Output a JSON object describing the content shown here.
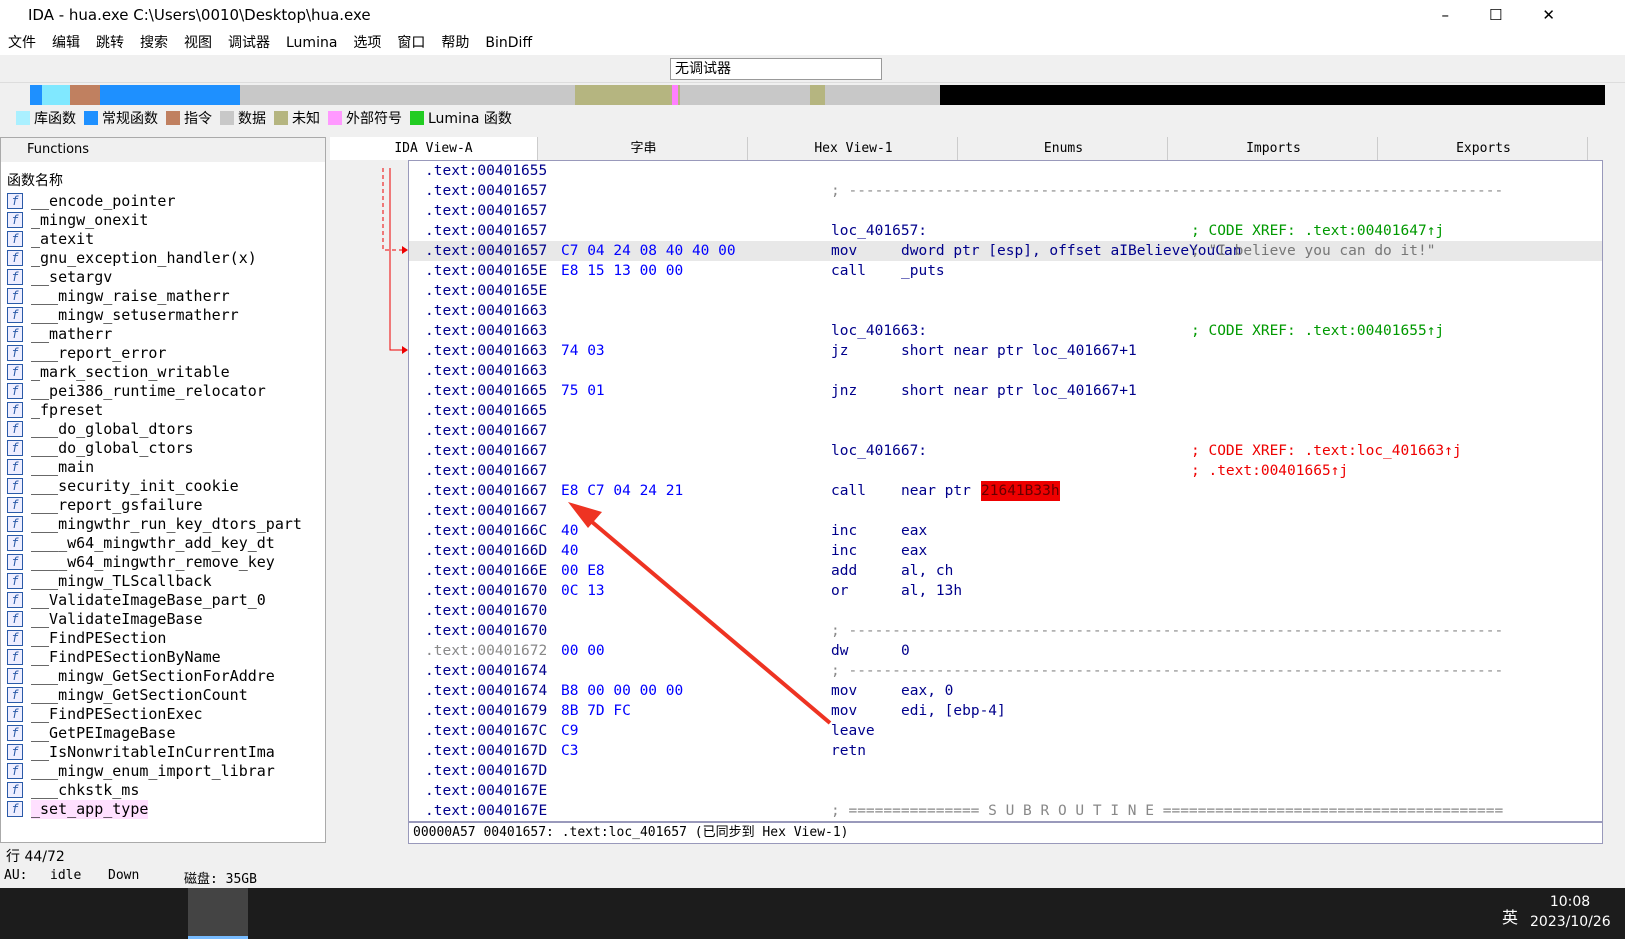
{
  "window": {
    "title": "IDA - hua.exe C:\\Users\\0010\\Desktop\\hua.exe"
  },
  "menu": [
    "文件",
    "编辑",
    "跳转",
    "搜索",
    "视图",
    "调试器",
    "Lumina",
    "选项",
    "窗口",
    "帮助",
    "BinDiff"
  ],
  "toolbar": {
    "debugger": "无调试器"
  },
  "legend": [
    "库函数",
    "常规函数",
    "指令",
    "数据",
    "未知",
    "外部符号",
    "Lumina 函数"
  ],
  "functions": {
    "title": "Functions",
    "header": "函数名称",
    "names": [
      "__encode_pointer",
      "_mingw_onexit",
      "_atexit",
      "_gnu_exception_handler(x)",
      "__setargv",
      "___mingw_raise_matherr",
      "___mingw_setusermatherr",
      "__matherr",
      "___report_error",
      "_mark_section_writable",
      "__pei386_runtime_relocator",
      "_fpreset",
      "___do_global_dtors",
      "___do_global_ctors",
      "___main",
      "___security_init_cookie",
      "___report_gsfailure",
      "___mingwthr_run_key_dtors_part",
      "____w64_mingwthr_add_key_dt",
      "____w64_mingwthr_remove_key",
      "___mingw_TLScallback",
      "__ValidateImageBase_part_0",
      "__ValidateImageBase",
      "__FindPESection",
      "__FindPESectionByName",
      "___mingw_GetSectionForAddre",
      "___mingw_GetSectionCount",
      "__FindPESectionExec",
      "__GetPEImageBase",
      "__IsNonwritableInCurrentIma",
      "___mingw_enum_import_librar",
      "___chkstk_ms",
      "_set_app_type"
    ],
    "status": "行 44/72"
  },
  "tabs": [
    "IDA View-A",
    "字串",
    "Hex View-1",
    "Enums",
    "Imports",
    "Exports"
  ],
  "disasm": [
    {
      "addr": ".text:00401655"
    },
    {
      "addr": ".text:00401657",
      "cmt": "; ---------------------------------------------------------------------------"
    },
    {
      "addr": ".text:00401657"
    },
    {
      "addr": ".text:00401657",
      "mnem": "loc_401657:",
      "cmt": "; CODE XREF: .text:00401647↑j"
    },
    {
      "addr": ".text:00401657",
      "bytes": "C7 04 24 08 40 40 00",
      "mnem": "mov",
      "ops": "dword ptr [esp], offset aIBelieveYouCan",
      "cmt": "; \"I believe you can do it!\""
    },
    {
      "addr": ".text:0040165E",
      "bytes": "E8 15 13 00 00",
      "mnem": "call",
      "ops": "_puts"
    },
    {
      "addr": ".text:0040165E"
    },
    {
      "addr": ".text:00401663"
    },
    {
      "addr": ".text:00401663",
      "mnem": "loc_401663:",
      "cmt": "; CODE XREF: .text:00401655↑j"
    },
    {
      "addr": ".text:00401663",
      "bytes": "74 03",
      "mnem": "jz",
      "ops": "short near ptr loc_401667+1"
    },
    {
      "addr": ".text:00401663"
    },
    {
      "addr": ".text:00401665",
      "bytes": "75 01",
      "mnem": "jnz",
      "ops": "short near ptr loc_401667+1"
    },
    {
      "addr": ".text:00401665"
    },
    {
      "addr": ".text:00401667"
    },
    {
      "addr": ".text:00401667",
      "mnem": "loc_401667:",
      "cmt": "; CODE XREF: .text:loc_401663↑j"
    },
    {
      "addr": ".text:00401667",
      "cmt": "; .text:00401665↑j"
    },
    {
      "addr": ".text:00401667",
      "bytes": "E8 C7 04 24 21",
      "mnem": "call",
      "ops": "near ptr",
      "target": "21641B33h"
    },
    {
      "addr": ".text:00401667"
    },
    {
      "addr": ".text:0040166C",
      "bytes": "40",
      "mnem": "inc",
      "ops": "eax"
    },
    {
      "addr": ".text:0040166D",
      "bytes": "40",
      "mnem": "inc",
      "ops": "eax"
    },
    {
      "addr": ".text:0040166E",
      "bytes": "00 E8",
      "mnem": "add",
      "ops": "al, ch"
    },
    {
      "addr": ".text:00401670",
      "bytes": "0C 13",
      "mnem": "or",
      "ops": "al, 13h"
    },
    {
      "addr": ".text:00401670"
    },
    {
      "addr": ".text:00401670",
      "cmt": "; ---------------------------------------------------------------------------"
    },
    {
      "addr": ".text:00401672",
      "bytes": "00 00",
      "mnem": "dw",
      "ops": "0"
    },
    {
      "addr": ".text:00401674",
      "cmt": "; ---------------------------------------------------------------------------"
    },
    {
      "addr": ".text:00401674",
      "bytes": "B8 00 00 00 00",
      "mnem": "mov",
      "ops": "eax, 0"
    },
    {
      "addr": ".text:00401679",
      "bytes": "8B 7D FC",
      "mnem": "mov",
      "ops": "edi, [ebp-4]"
    },
    {
      "addr": ".text:0040167C",
      "bytes": "C9",
      "mnem": "leave"
    },
    {
      "addr": ".text:0040167D",
      "bytes": "C3",
      "mnem": "retn"
    },
    {
      "addr": ".text:0040167D"
    },
    {
      "addr": ".text:0040167E"
    },
    {
      "addr": ".text:0040167E",
      "cmt": "; =============== S U B R O U T I N E ======================================="
    }
  ],
  "view_status": "00000A57 00401657: .text:loc_401657 (已同步到 Hex View-1)",
  "statusbar": {
    "au": "AU:",
    "state": "idle",
    "direction": "Down",
    "disk": "磁盘: 35GB"
  },
  "taskbar": {
    "ime": "英",
    "time": "10:08",
    "date": "2023/10/26"
  }
}
